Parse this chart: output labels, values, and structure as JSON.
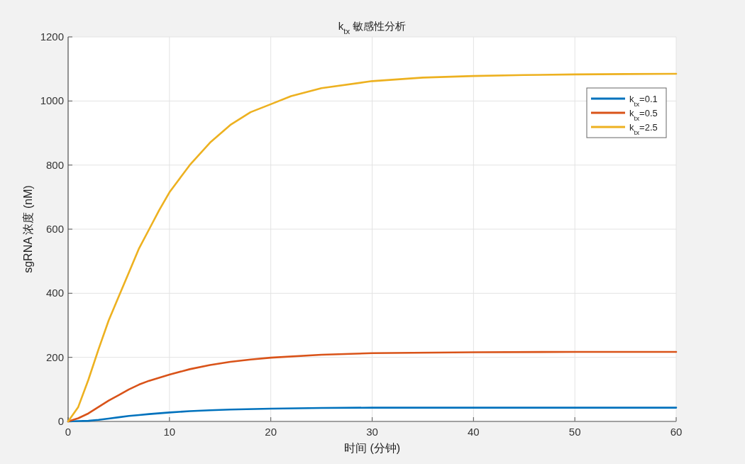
{
  "chart_data": {
    "type": "line",
    "title": "k$_{tx}$ 敏感性分析",
    "xlabel": "时间 (分钟)",
    "ylabel": "sgRNA 浓度 (nM)",
    "xlim": [
      0,
      60
    ],
    "ylim": [
      0,
      1200
    ],
    "xticks": [
      0,
      10,
      20,
      30,
      40,
      50,
      60
    ],
    "yticks": [
      0,
      200,
      400,
      600,
      800,
      1000,
      1200
    ],
    "grid": true,
    "legend": "top right",
    "series": [
      {
        "name": "k$_{tx}$=0.1",
        "color": "#0072bd",
        "x": [
          0,
          1,
          2,
          3,
          4,
          5,
          6,
          7,
          8,
          10,
          12,
          14,
          16,
          20,
          25,
          30,
          40,
          50,
          60
        ],
        "values": [
          0,
          1,
          2,
          5,
          9,
          13,
          17,
          20,
          23,
          28,
          32,
          35,
          37,
          40,
          42,
          43,
          43,
          43,
          43
        ]
      },
      {
        "name": "k$_{tx}$=0.5",
        "color": "#d95319",
        "x": [
          0,
          1,
          2,
          3,
          4,
          5,
          6,
          7,
          8,
          10,
          12,
          14,
          16,
          18,
          20,
          25,
          30,
          40,
          50,
          60
        ],
        "values": [
          0,
          10,
          25,
          45,
          65,
          82,
          100,
          115,
          127,
          146,
          163,
          176,
          186,
          193,
          199,
          208,
          213,
          216,
          217,
          217
        ]
      },
      {
        "name": "k$_{tx}$=2.5",
        "color": "#edb120",
        "x": [
          0,
          1,
          2,
          3,
          4,
          5,
          6,
          7,
          8,
          9,
          10,
          12,
          14,
          16,
          18,
          20,
          22,
          25,
          30,
          35,
          40,
          45,
          50,
          55,
          60
        ],
        "values": [
          0,
          45,
          130,
          225,
          315,
          390,
          465,
          540,
          600,
          660,
          715,
          800,
          870,
          925,
          965,
          990,
          1015,
          1040,
          1062,
          1073,
          1078,
          1081,
          1083,
          1084,
          1085
        ]
      }
    ]
  }
}
